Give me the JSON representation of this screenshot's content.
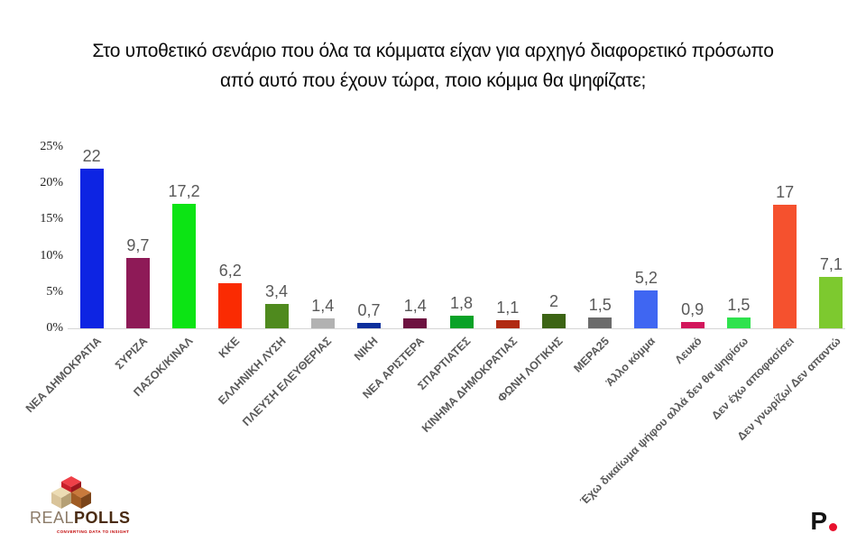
{
  "title": {
    "line1": "Στο υποθετικό σενάριο που όλα τα κόμματα είχαν για αρχηγό διαφορετικό πρόσωπο",
    "line2": "από αυτό που έχουν τώρα, ποιο κόμμα θα ψηφίζατε;"
  },
  "chart_data": {
    "type": "bar",
    "title": "Στο υποθετικό σενάριο που όλα τα κόμματα είχαν για αρχηγό διαφορετικό πρόσωπο από αυτό που έχουν τώρα, ποιο κόμμα θα ψηφίζατε;",
    "categories": [
      "ΝΕΑ ΔΗΜΟΚΡΑΤΙΑ",
      "ΣΥΡΙΖΑ",
      "ΠΑΣΟΚ/ΚΙΝΑΛ",
      "ΚΚΕ",
      "ΕΛΛΗΝΙΚΗ ΛΥΣΗ",
      "ΠΛΕΥΣΗ ΕΛΕΥΘΕΡΙΑΣ",
      "ΝΙΚΗ",
      "ΝΕΑ ΑΡΙΣΤΕΡΑ",
      "ΣΠΑΡΤΙΑΤΕΣ",
      "ΚΙΝΗΜΑ ΔΗΜΟΚΡΑΤΙΑΣ",
      "ΦΩΝΗ ΛΟΓΙΚΗΣ",
      "ΜΕΡΑ25",
      "Άλλο κόμμα",
      "Λευκό",
      "Έχω δικαίωμα ψήφου αλλά δεν θα ψηφίσω",
      "Δεν έχω αποφασίσει",
      "Δεν γνωρίζω/ Δεν απαντώ"
    ],
    "values": [
      22,
      9.7,
      17.2,
      6.2,
      3.4,
      1.4,
      0.7,
      1.4,
      1.8,
      1.1,
      2,
      1.5,
      5.2,
      0.9,
      1.5,
      17,
      7.1
    ],
    "value_labels": [
      "22",
      "9,7",
      "17,2",
      "6,2",
      "3,4",
      "1,4",
      "0,7",
      "1,4",
      "1,8",
      "1,1",
      "2",
      "1,5",
      "5,2",
      "0,9",
      "1,5",
      "17",
      "7,1"
    ],
    "bar_colors": [
      "#0d24e3",
      "#8e1a57",
      "#0ce414",
      "#fa2b02",
      "#4f8a1e",
      "#b2b2b2",
      "#0c2f9c",
      "#6d1240",
      "#09a227",
      "#b02a12",
      "#3c6414",
      "#6b6b6b",
      "#3f66f2",
      "#d2175c",
      "#2fe24e",
      "#f5512e",
      "#7dc92f"
    ],
    "xlabel": "",
    "ylabel": "",
    "ylim": [
      0,
      25
    ],
    "yticks": [
      "0%",
      "5%",
      "10%",
      "15%",
      "20%",
      "25%"
    ],
    "grid": false,
    "legend": false,
    "value_label_color": "#595959",
    "category_label_color": "#595959",
    "axis_line_color": "#d6d6d6"
  },
  "footer": {
    "brand_left": {
      "name_part1": "REAL",
      "name_part2": "POLLS",
      "tagline": "CONVERTING DATA TO INSIGHT"
    },
    "brand_right": {
      "letter": "P"
    }
  }
}
